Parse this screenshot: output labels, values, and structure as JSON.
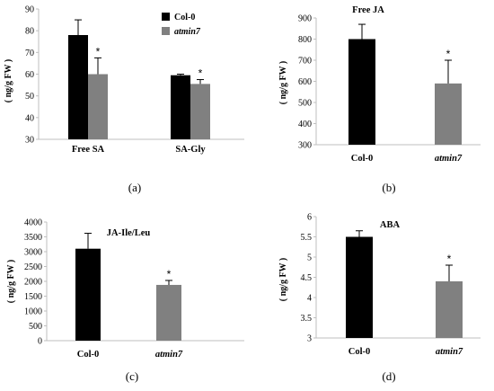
{
  "colors": {
    "col0": "#000000",
    "atmin7": "#808080",
    "axis": "#bfbfbf",
    "text": "#000000"
  },
  "legend": [
    {
      "name": "Col-0",
      "color": "#000000"
    },
    {
      "name": "atmin7",
      "color": "#808080"
    }
  ],
  "chart_data": [
    {
      "type": "bar",
      "panel_label": "(a)",
      "title": "",
      "ylabel": "( ng/g FW )",
      "ylim": [
        30,
        90
      ],
      "yticks": [
        30,
        40,
        50,
        60,
        70,
        80,
        90
      ],
      "categories": [
        "Free SA",
        "SA-Gly"
      ],
      "series": [
        {
          "name": "Col-0",
          "values": [
            78,
            59.5
          ],
          "errors": [
            7,
            0.5
          ]
        },
        {
          "name": "atmin7",
          "values": [
            60,
            55.5
          ],
          "errors": [
            7.5,
            2
          ]
        }
      ],
      "annotations": [
        {
          "category": "Free SA",
          "series": "atmin7",
          "text": "*"
        },
        {
          "category": "SA-Gly",
          "series": "atmin7",
          "text": "*"
        }
      ]
    },
    {
      "type": "bar",
      "panel_label": "(b)",
      "title": "Free JA",
      "ylabel": "( ng/g FW )",
      "ylim": [
        300,
        900
      ],
      "yticks": [
        300,
        400,
        500,
        600,
        700,
        800,
        900
      ],
      "categories": [
        "Col-0",
        "atmin7"
      ],
      "values": [
        800,
        590
      ],
      "errors": [
        70,
        110
      ],
      "annotations": [
        {
          "category": "atmin7",
          "text": "*"
        }
      ]
    },
    {
      "type": "bar",
      "panel_label": "(c)",
      "title": "JA-Ile/Leu",
      "ylabel": "( ng/g FW )",
      "ylim": [
        0,
        4000
      ],
      "yticks": [
        0,
        500,
        1000,
        1500,
        2000,
        2500,
        3000,
        3500,
        4000
      ],
      "categories": [
        "Col-0",
        "atmin7"
      ],
      "values": [
        3100,
        1880
      ],
      "errors": [
        520,
        150
      ],
      "annotations": [
        {
          "category": "atmin7",
          "text": "*"
        }
      ]
    },
    {
      "type": "bar",
      "panel_label": "(d)",
      "title": "ABA",
      "ylabel": "( ng/g FW )",
      "ylim": [
        3,
        6
      ],
      "yticks": [
        3,
        3.5,
        4,
        4.5,
        5,
        5.5,
        6
      ],
      "categories": [
        "Col-0",
        "atmin7"
      ],
      "values": [
        5.5,
        4.4
      ],
      "errors": [
        0.15,
        0.4
      ],
      "annotations": [
        {
          "category": "atmin7",
          "text": "*"
        }
      ]
    }
  ]
}
